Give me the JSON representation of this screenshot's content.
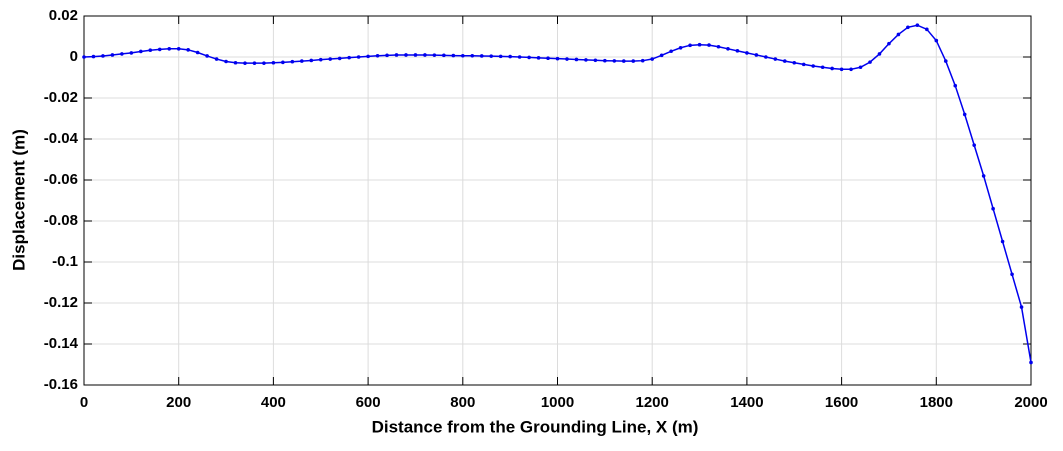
{
  "chart_data": {
    "type": "line",
    "xlabel": "Distance from the Grounding Line, X (m)",
    "ylabel": "Displacement (m)",
    "x": [
      0,
      20,
      40,
      60,
      80,
      100,
      120,
      140,
      160,
      180,
      200,
      220,
      240,
      260,
      280,
      300,
      320,
      340,
      360,
      380,
      400,
      420,
      440,
      460,
      480,
      500,
      520,
      540,
      560,
      580,
      600,
      620,
      640,
      660,
      680,
      700,
      720,
      740,
      760,
      780,
      800,
      820,
      840,
      860,
      880,
      900,
      920,
      940,
      960,
      980,
      1000,
      1020,
      1040,
      1060,
      1080,
      1100,
      1120,
      1140,
      1160,
      1180,
      1200,
      1220,
      1240,
      1260,
      1280,
      1300,
      1320,
      1340,
      1360,
      1380,
      1400,
      1420,
      1440,
      1460,
      1480,
      1500,
      1520,
      1540,
      1560,
      1580,
      1600,
      1620,
      1640,
      1660,
      1680,
      1700,
      1720,
      1740,
      1760,
      1780,
      1800,
      1820,
      1840,
      1860,
      1880,
      1900,
      1920,
      1940,
      1960,
      1980,
      2000
    ],
    "series": [
      {
        "color": "#0000ee",
        "values": [
          0,
          0.0002,
          0.0005,
          0.001,
          0.0015,
          0.002,
          0.0027,
          0.0033,
          0.0037,
          0.004,
          0.004,
          0.0035,
          0.0022,
          0.0005,
          -0.001,
          -0.0022,
          -0.0028,
          -0.003,
          -0.003,
          -0.003,
          -0.0028,
          -0.0026,
          -0.0023,
          -0.002,
          -0.0017,
          -0.0013,
          -0.001,
          -0.0007,
          -0.0003,
          0,
          0.0003,
          0.0006,
          0.0008,
          0.001,
          0.001,
          0.001,
          0.001,
          0.0009,
          0.0008,
          0.0007,
          0.0006,
          0.0006,
          0.0005,
          0.0004,
          0.0003,
          0.0002,
          0,
          -0.0002,
          -0.0004,
          -0.0006,
          -0.0008,
          -0.001,
          -0.0012,
          -0.0014,
          -0.0016,
          -0.0018,
          -0.0019,
          -0.002,
          -0.002,
          -0.0018,
          -0.001,
          0.0008,
          0.0028,
          0.0045,
          0.0057,
          0.006,
          0.0058,
          0.005,
          0.004,
          0.003,
          0.002,
          0.001,
          0,
          -0.001,
          -0.002,
          -0.0028,
          -0.0036,
          -0.0044,
          -0.005,
          -0.0056,
          -0.006,
          -0.006,
          -0.005,
          -0.0025,
          0.0015,
          0.0065,
          0.011,
          0.0145,
          0.0155,
          0.0135,
          0.008,
          -0.002,
          -0.014,
          -0.028,
          -0.043,
          -0.058,
          -0.074,
          -0.09,
          -0.106,
          -0.122,
          -0.149
        ]
      }
    ],
    "xlim": [
      0,
      2000
    ],
    "xticks": [
      0,
      200,
      400,
      600,
      800,
      1000,
      1200,
      1400,
      1600,
      1800,
      2000
    ],
    "ylim": [
      -0.16,
      0.02
    ],
    "yticks": [
      0.02,
      0,
      -0.02,
      -0.04,
      -0.06,
      -0.08,
      -0.1,
      -0.12,
      -0.14,
      -0.16
    ],
    "grid": true
  }
}
